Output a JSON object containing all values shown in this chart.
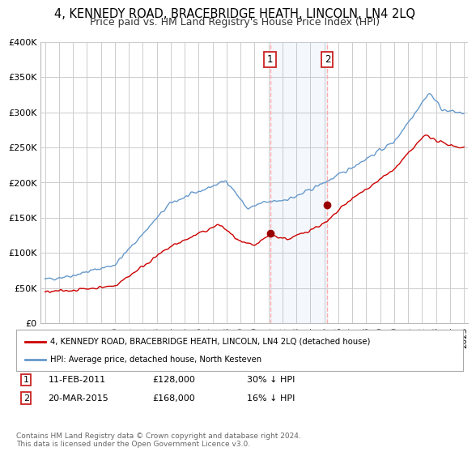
{
  "title": "4, KENNEDY ROAD, BRACEBRIDGE HEATH, LINCOLN, LN4 2LQ",
  "subtitle": "Price paid vs. HM Land Registry's House Price Index (HPI)",
  "title_fontsize": 10.5,
  "subtitle_fontsize": 9,
  "background_color": "#ffffff",
  "plot_bg_color": "#ffffff",
  "grid_color": "#cccccc",
  "ylim": [
    0,
    400000
  ],
  "yticks": [
    0,
    50000,
    100000,
    150000,
    200000,
    250000,
    300000,
    350000,
    400000
  ],
  "ytick_labels": [
    "£0",
    "£50K",
    "£100K",
    "£150K",
    "£200K",
    "£250K",
    "£300K",
    "£350K",
    "£400K"
  ],
  "xlim_start": 1994.7,
  "xlim_end": 2025.3,
  "sale1_x": 2011.11,
  "sale1_y": 128000,
  "sale1_label": "1",
  "sale1_date": "11-FEB-2011",
  "sale1_price": "£128,000",
  "sale1_hpi": "30% ↓ HPI",
  "sale2_x": 2015.22,
  "sale2_y": 168000,
  "sale2_label": "2",
  "sale2_date": "20-MAR-2015",
  "sale2_price": "£168,000",
  "sale2_hpi": "16% ↓ HPI",
  "red_line_color": "#cc0000",
  "blue_line_color": "#6699cc",
  "dashed_line_color": "#ffaaaa",
  "marker_color": "#990000",
  "legend_label_red": "4, KENNEDY ROAD, BRACEBRIDGE HEATH, LINCOLN, LN4 2LQ (detached house)",
  "legend_label_blue": "HPI: Average price, detached house, North Kesteven",
  "footnote": "Contains HM Land Registry data © Crown copyright and database right 2024.\nThis data is licensed under the Open Government Licence v3.0.",
  "xticks": [
    1995,
    1996,
    1997,
    1998,
    1999,
    2000,
    2001,
    2002,
    2003,
    2004,
    2005,
    2006,
    2007,
    2008,
    2009,
    2010,
    2011,
    2012,
    2013,
    2014,
    2015,
    2016,
    2017,
    2018,
    2019,
    2020,
    2021,
    2022,
    2023,
    2024,
    2025
  ]
}
